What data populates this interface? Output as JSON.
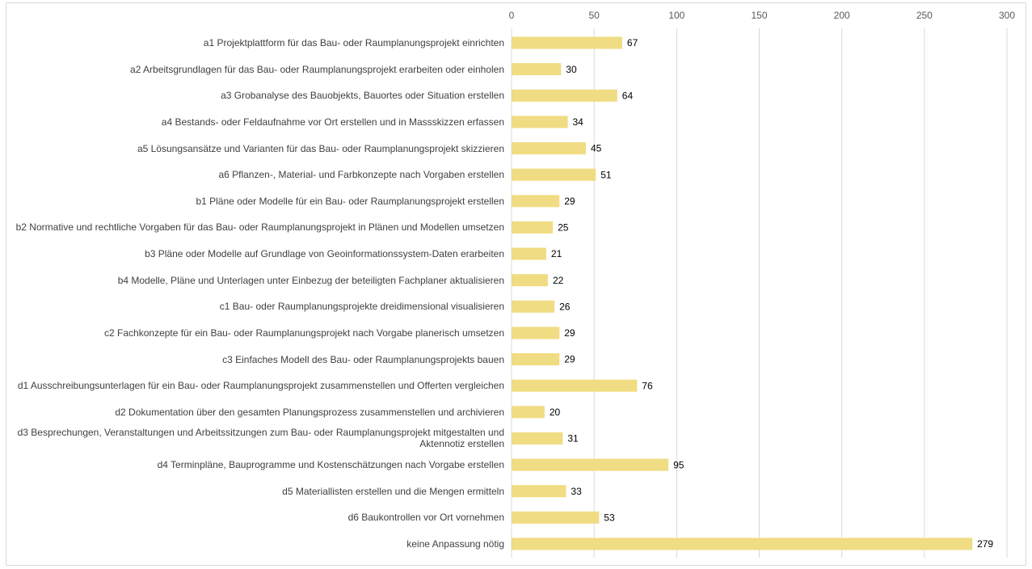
{
  "chart_data": {
    "type": "bar",
    "orientation": "horizontal",
    "categories": [
      "a1 Projektplattform für das Bau- oder Raumplanungsprojekt einrichten",
      "a2 Arbeitsgrundlagen für das Bau- oder Raumplanungsprojekt erarbeiten oder einholen",
      "a3 Grobanalyse des Bauobjekts, Bauortes oder Situation erstellen",
      "a4 Bestands- oder Feldaufnahme vor Ort erstellen und in Massskizzen erfassen",
      "a5 Lösungsansätze und Varianten für das Bau- oder Raumplanungsprojekt skizzieren",
      "a6 Pflanzen-, Material- und Farbkonzepte nach Vorgaben erstellen",
      "b1 Pläne oder Modelle für ein Bau- oder Raumplanungsprojekt erstellen",
      "b2 Normative und rechtliche Vorgaben für das Bau- oder Raumplanungsprojekt in Plänen und Modellen umsetzen",
      "b3 Pläne oder Modelle auf Grundlage von Geoinformationssystem-Daten erarbeiten",
      "b4 Modelle, Pläne und Unterlagen unter Einbezug der beteiligten Fachplaner aktualisieren",
      "c1 Bau- oder Raumplanungsprojekte dreidimensional visualisieren",
      "c2 Fachkonzepte für ein Bau- oder Raumplanungsprojekt nach Vorgabe planerisch umsetzen",
      "c3 Einfaches Modell des Bau- oder Raumplanungsprojekts bauen",
      "d1 Ausschreibungsunterlagen für ein Bau- oder Raumplanungsprojekt zusammenstellen und Offerten vergleichen",
      "d2 Dokumentation über den gesamten Planungsprozess zusammenstellen und archivieren",
      "d3 Besprechungen, Veranstaltungen und Arbeitssitzungen zum Bau- oder Raumplanungsprojekt mitgestalten und Aktennotiz erstellen",
      "d4 Terminpläne, Bauprogramme und Kostenschätzungen nach Vorgabe erstellen",
      "d5 Materiallisten erstellen und die Mengen ermitteln",
      "d6 Baukontrollen vor Ort vornehmen",
      "keine Anpassung nötig"
    ],
    "values": [
      67,
      30,
      64,
      34,
      45,
      51,
      29,
      25,
      21,
      22,
      26,
      29,
      29,
      76,
      20,
      31,
      95,
      33,
      53,
      279
    ],
    "color": "#f0dc82",
    "xlim": [
      0,
      300
    ],
    "xticks": [
      0,
      50,
      100,
      150,
      200,
      250,
      300
    ],
    "grid": true
  }
}
